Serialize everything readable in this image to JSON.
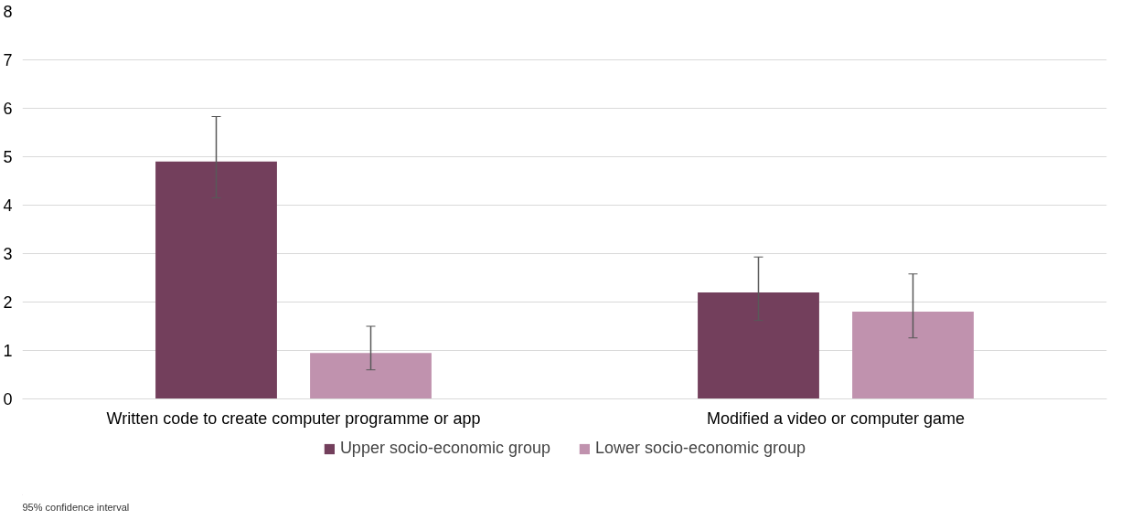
{
  "chart_data": {
    "type": "bar",
    "categories": [
      "Written code to create computer programme or app",
      "Modified a video or computer game"
    ],
    "series": [
      {
        "name": "Upper socio-economic group",
        "color": "#733f5c",
        "values": [
          4.9,
          2.2
        ],
        "errors": [
          [
            4.15,
            5.83
          ],
          [
            1.62,
            2.93
          ]
        ]
      },
      {
        "name": "Lower socio-economic group",
        "color": "#c092ae",
        "values": [
          0.95,
          1.8
        ],
        "errors": [
          [
            0.6,
            1.5
          ],
          [
            1.26,
            2.58
          ]
        ]
      }
    ],
    "ylim": [
      0,
      8
    ],
    "yticks": [
      0,
      1,
      2,
      3,
      4,
      5,
      6,
      7,
      8
    ],
    "grid": "y",
    "legend": "bottom",
    "annotations": [
      "95% confidence interval"
    ]
  }
}
